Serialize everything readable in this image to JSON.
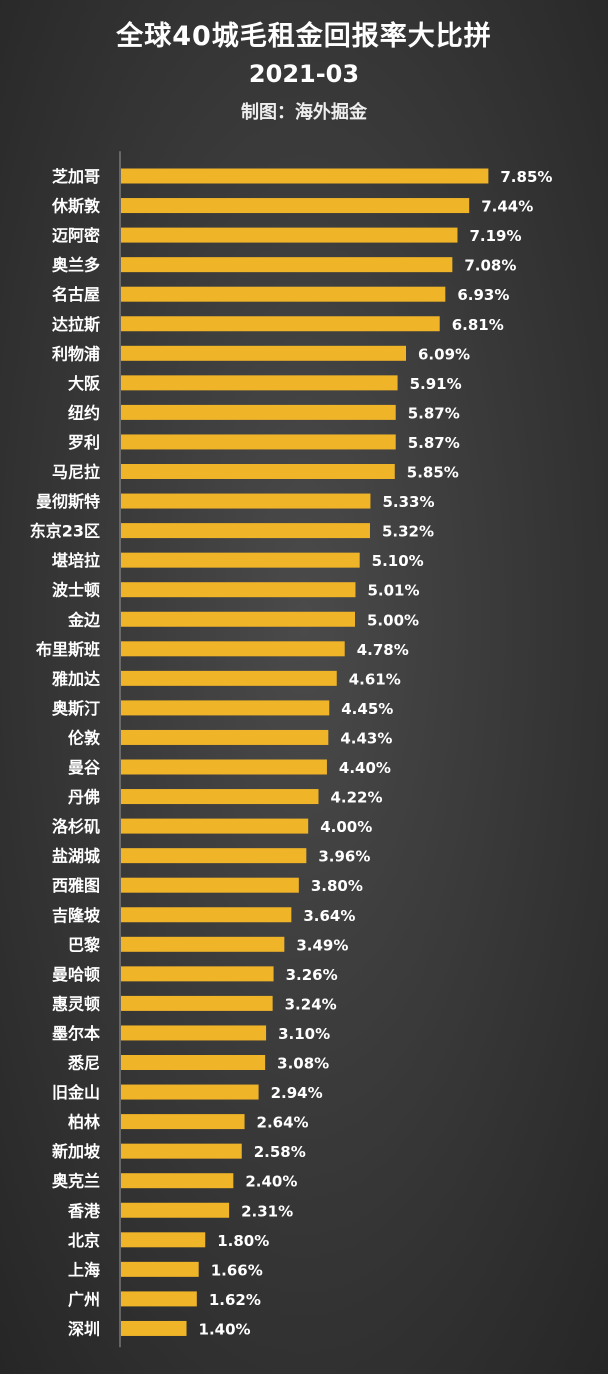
{
  "header": {
    "title": "全球40城毛租金回报率大比拼",
    "date": "2021-03",
    "credit": "制图：海外掘金"
  },
  "colors": {
    "bar": "#f0b429",
    "axis": "#9a9a9a"
  },
  "chart_data": {
    "type": "bar",
    "orientation": "horizontal",
    "title": "全球40城毛租金回报率大比拼",
    "subtitle": "2021-03",
    "xlabel": "",
    "ylabel": "",
    "unit": "%",
    "xlim": [
      0,
      8.5
    ],
    "grid": false,
    "legend": "none",
    "categories": [
      "芝加哥",
      "休斯敦",
      "迈阿密",
      "奥兰多",
      "名古屋",
      "达拉斯",
      "利物浦",
      "大阪",
      "纽约",
      "罗利",
      "马尼拉",
      "曼彻斯特",
      "东京23区",
      "堪培拉",
      "波士顿",
      "金边",
      "布里斯班",
      "雅加达",
      "奥斯汀",
      "伦敦",
      "曼谷",
      "丹佛",
      "洛杉矶",
      "盐湖城",
      "西雅图",
      "吉隆坡",
      "巴黎",
      "曼哈顿",
      "惠灵顿",
      "墨尔本",
      "悉尼",
      "旧金山",
      "柏林",
      "新加坡",
      "奥克兰",
      "香港",
      "北京",
      "上海",
      "广州",
      "深圳"
    ],
    "values": [
      7.85,
      7.44,
      7.19,
      7.08,
      6.93,
      6.81,
      6.09,
      5.91,
      5.87,
      5.87,
      5.85,
      5.33,
      5.32,
      5.1,
      5.01,
      5.0,
      4.78,
      4.61,
      4.45,
      4.43,
      4.4,
      4.22,
      4.0,
      3.96,
      3.8,
      3.64,
      3.49,
      3.26,
      3.24,
      3.1,
      3.08,
      2.94,
      2.64,
      2.58,
      2.4,
      2.31,
      1.8,
      1.66,
      1.62,
      1.4
    ],
    "value_labels": [
      "7.85%",
      "7.44%",
      "7.19%",
      "7.08%",
      "6.93%",
      "6.81%",
      "6.09%",
      "5.91%",
      "5.87%",
      "5.87%",
      "5.85%",
      "5.33%",
      "5.32%",
      "5.10%",
      "5.01%",
      "5.00%",
      "4.78%",
      "4.61%",
      "4.45%",
      "4.43%",
      "4.40%",
      "4.22%",
      "4.00%",
      "3.96%",
      "3.80%",
      "3.64%",
      "3.49%",
      "3.26%",
      "3.24%",
      "3.10%",
      "3.08%",
      "2.94%",
      "2.64%",
      "2.58%",
      "2.40%",
      "2.31%",
      "1.80%",
      "1.66%",
      "1.62%",
      "1.40%"
    ]
  }
}
